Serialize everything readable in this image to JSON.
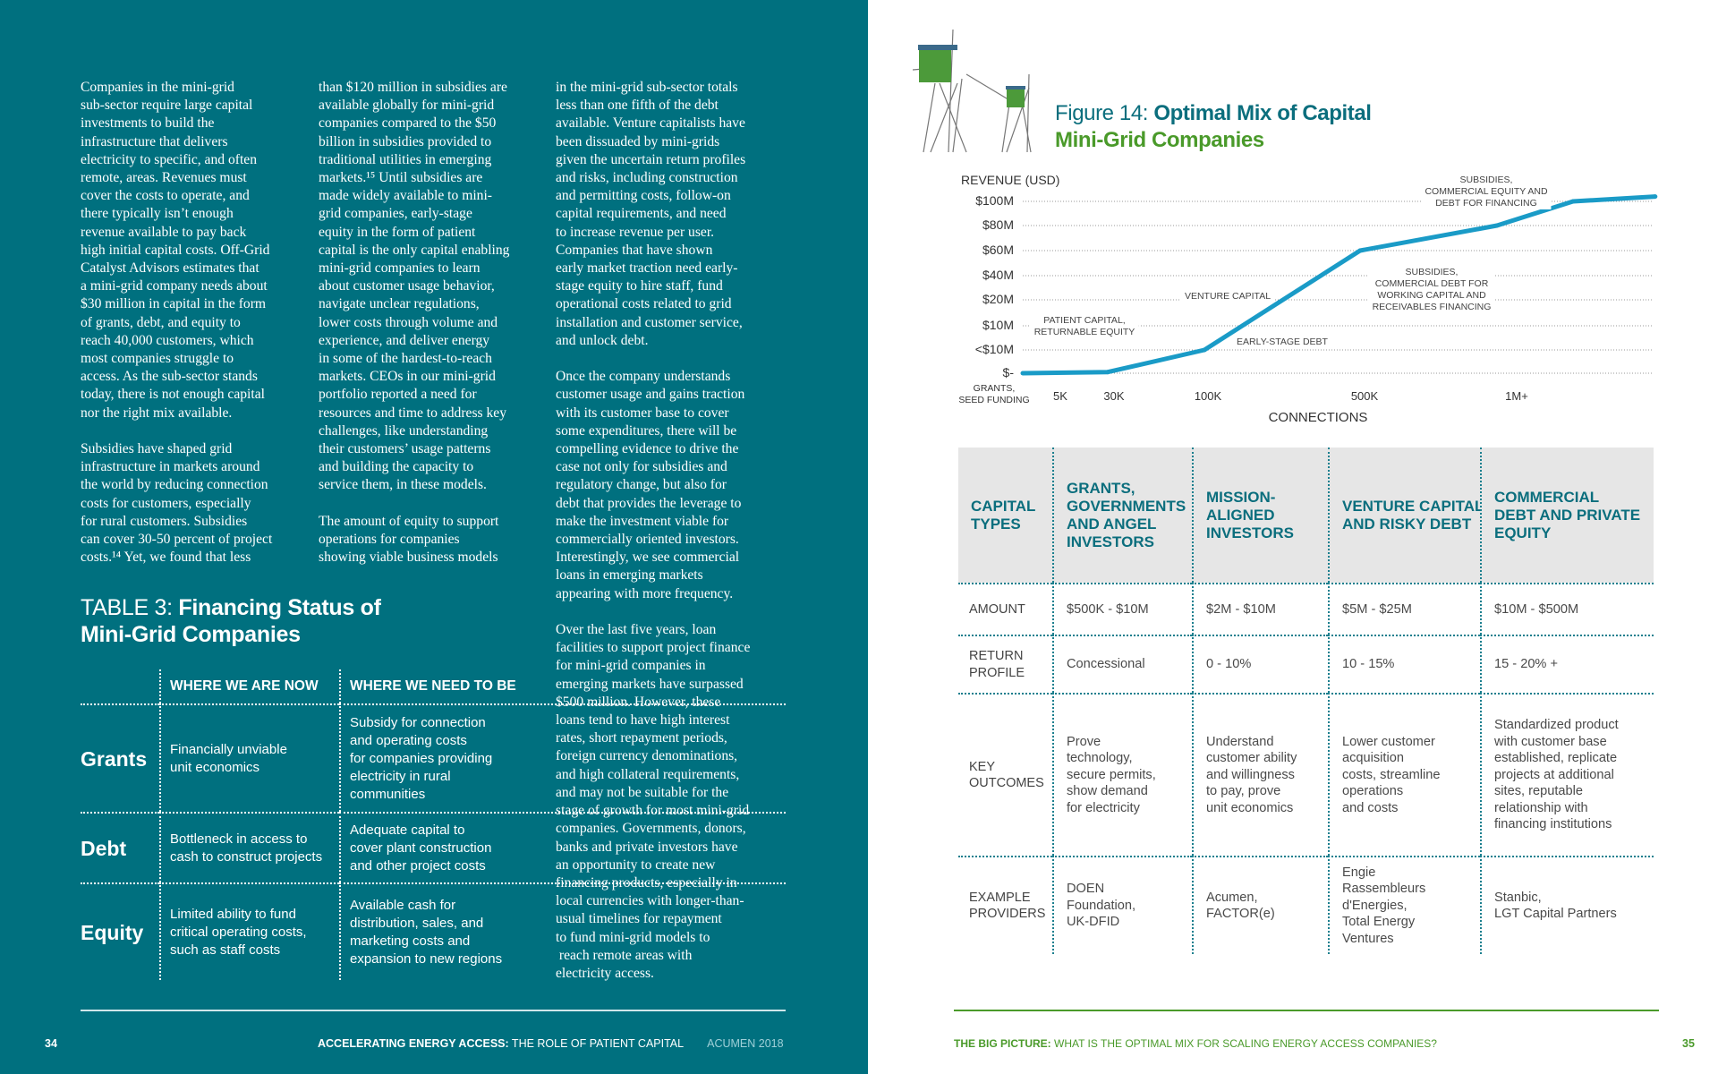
{
  "left_page": {
    "columns": [
      [
        "Companies in the mini-grid\nsub-sector require large capital\ninvestments to build the\ninfrastructure that delivers\nelectricity to specific, and often\nremote, areas. Revenues must\ncover the costs to operate, and\nthere typically isn’t enough\nrevenue available to pay back\nhigh initial capital costs. Off-Grid\nCatalyst Advisors estimates that\na mini-grid company needs about\n$30 million in capital in the form\nof grants, debt, and equity to\nreach 40,000 customers, which\nmost companies struggle to\naccess. As the sub-sector stands\ntoday, there is not enough capital\nnor the right mix available.",
        "Subsidies have shaped grid\ninfrastructure in markets around\nthe world by reducing connection\ncosts for customers, especially\nfor rural customers. Subsidies\ncan cover 30-50 percent of project\ncosts.¹⁴ Yet, we found that less"
      ],
      [
        "than $120 million in subsidies are\navailable globally for mini-grid\ncompanies compared to the $50\nbillion in subsidies provided to\ntraditional utilities in emerging\nmarkets.¹⁵ Until subsidies are\nmade widely available to mini-\ngrid companies, early-stage\nequity in the form of patient\ncapital is the only capital enabling\nmini-grid companies to learn\nabout customer usage behavior,\nnavigate unclear regulations,\nlower costs through volume and\nexperience, and deliver energy\nin some of the hardest-to-reach\nmarkets. CEOs in our mini-grid\nportfolio reported a need for\nresources and time to address key\nchallenges, like understanding\ntheir customers’ usage patterns\nand building the capacity to\nservice them, in these models.",
        "The amount of equity to support\noperations for companies\nshowing viable business models"
      ],
      [
        "in the mini-grid sub-sector totals\nless than one fifth of the debt\navailable. Venture capitalists have\nbeen dissuaded by mini-grids\ngiven the uncertain return profiles\nand risks, including construction\nand permitting costs, follow-on\ncapital requirements, and need\nto increase revenue per user.\nCompanies that have shown\nearly market traction need early-\nstage equity to hire staff, fund\noperational costs related to grid\ninstallation and customer service,\nand unlock debt.",
        "Once the company understands\ncustomer usage and gains traction\nwith its customer base to cover\nsome expenditures, there will be\ncompelling evidence to drive the\ncase not only for subsidies and\nregulatory change, but also for\ndebt that provides the leverage to\nmake the investment viable for\ncommercially oriented investors.\nInterestingly, we see commercial\nloans in emerging markets\nappearing with more frequency.",
        "Over the last five years, loan\nfacilities to support project finance\nfor mini-grid companies in\nemerging markets have surpassed\n$500 million. However, these\nloans tend to have high interest\nrates, short repayment periods,\nforeign currency denominations,\nand high collateral requirements,\nand may not be suitable for the\nstage of growth for most mini-grid\ncompanies. Governments, donors,\nbanks and private investors have\nan opportunity to create new\nfinancing products, especially in\nlocal currencies with longer-than-\nusual timelines for repayment\nto fund mini-grid models to\n reach remote areas with\nelectricity access."
      ]
    ],
    "table": {
      "title_prefix": "TABLE 3: ",
      "title_bold": "Financing Status of",
      "title_line2": "Mini-Grid Companies",
      "headers": [
        "WHERE WE ARE NOW",
        "WHERE WE NEED TO BE"
      ],
      "rows": [
        {
          "label": "Grants",
          "now": "Financially unviable\nunit economics",
          "need": "Subsidy for connection\nand operating costs\nfor companies providing\nelectricity in rural\ncommunities"
        },
        {
          "label": "Debt",
          "now": "Bottleneck in access to\ncash to construct projects",
          "need": "Adequate capital to\ncover plant construction\nand other project costs"
        },
        {
          "label": "Equity",
          "now": "Limited ability to fund\ncritical operating costs,\nsuch as staff costs",
          "need": "Available cash for\ndistribution, sales, and\nmarketing costs and\nexpansion to new regions"
        }
      ]
    },
    "footer": {
      "page": "34",
      "bold": "ACCELERATING ENERGY ACCESS:",
      "rest": " THE ROLE OF PATIENT CAPITAL",
      "org": "ACUMEN 2018"
    }
  },
  "right_page": {
    "figure_prefix": "Figure 14: ",
    "figure_bold": "Optimal Mix of Capital",
    "figure_line2": "Mini-Grid Companies",
    "chart_data": {
      "type": "line",
      "ylabel": "REVENUE (USD)",
      "xlabel": "CONNECTIONS",
      "y_ticks": [
        "$-",
        "<$10M",
        "$10M",
        "$20M",
        "$40M",
        "$60M",
        "$80M",
        "$100M"
      ],
      "x_ticks": [
        "GRANTS,\nSEED FUNDING",
        "5K",
        "30K",
        "100K",
        "500K",
        "1M+"
      ],
      "points": [
        [
          0,
          0
        ],
        [
          2,
          0.05
        ],
        [
          3,
          1
        ],
        [
          4,
          5
        ],
        [
          4.9,
          6
        ],
        [
          5.4,
          7
        ],
        [
          5.94,
          7.2
        ]
      ],
      "grid": true,
      "annotations": [
        "PATIENT CAPITAL,\nRETURNABLE EQUITY",
        "VENTURE CAPITAL",
        "EARLY-STAGE DEBT",
        "SUBSIDIES,\nCOMMERCIAL DEBT FOR\nWORKING CAPITAL AND\nRECEIVABLES FINANCING",
        "SUBSIDIES,\nCOMMERCIAL EQUITY AND\nDEBT FOR FINANCING"
      ],
      "line_color": "#1a9bc7"
    },
    "capital_table": {
      "headers": [
        "CAPITAL\nTYPES",
        "GRANTS,\nGOVERNMENTS\nAND ANGEL\nINVESTORS",
        "MISSION-\nALIGNED\nINVESTORS",
        "VENTURE CAPITAL\nAND RISKY DEBT",
        "COMMERCIAL\nDEBT AND PRIVATE\nEQUITY"
      ],
      "rows": [
        [
          "AMOUNT",
          "$500K - $10M",
          "$2M - $10M",
          "$5M - $25M",
          "$10M - $500M"
        ],
        [
          "RETURN\nPROFILE",
          "Concessional",
          "0 - 10%",
          "10 - 15%",
          "15 - 20% +"
        ],
        [
          "KEY\nOUTCOMES",
          "Prove\ntechnology,\nsecure permits,\nshow demand\nfor electricity",
          "Understand\ncustomer ability\nand willingness\nto pay, prove\nunit economics",
          "Lower customer\nacquisition\ncosts, streamline\noperations\nand costs",
          "Standardized product\nwith customer base\nestablished, replicate\nprojects at additional\nsites, reputable\nrelationship with\nfinancing institutions"
        ],
        [
          "EXAMPLE\nPROVIDERS",
          "DOEN\nFoundation,\nUK-DFID",
          "Acumen,\nFACTOR(e)",
          "Engie\nRassembleurs\nd'Energies,\nTotal Energy\nVentures",
          "Stanbic,\nLGT Capital Partners"
        ]
      ]
    },
    "footer": {
      "bold": "THE BIG PICTURE:",
      "rest": " WHAT IS THE OPTIMAL MIX FOR SCALING ENERGY ACCESS COMPANIES?",
      "page": "35"
    }
  },
  "colors": {
    "teal": "#00707f",
    "title_teal": "#0b6e7d",
    "green": "#4a9a2a"
  }
}
